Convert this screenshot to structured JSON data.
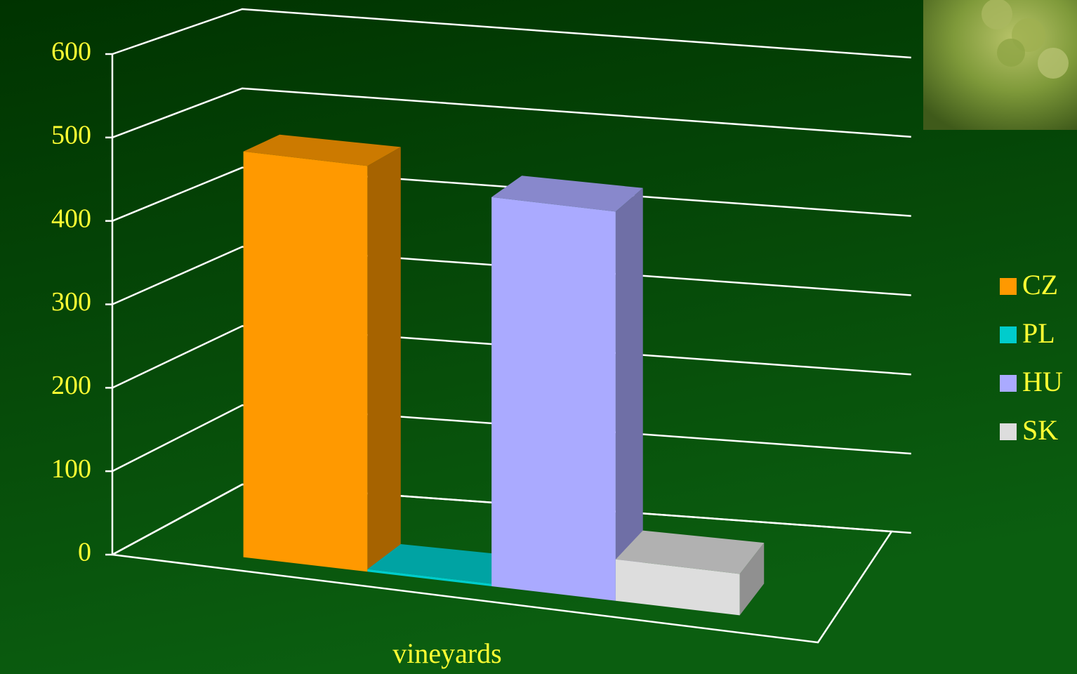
{
  "chart_data": {
    "type": "bar3d",
    "categories": [
      "vineyards"
    ],
    "series": [
      {
        "name": "CZ",
        "color": "#ff9900",
        "values": [
          490
        ]
      },
      {
        "name": "PL",
        "color": "#00cccc",
        "values": [
          3
        ]
      },
      {
        "name": "HU",
        "color": "#aaaaff",
        "values": [
          470
        ]
      },
      {
        "name": "SK",
        "color": "#dddddd",
        "values": [
          50
        ]
      }
    ],
    "ylim": [
      0,
      600
    ],
    "yticks": [
      0,
      100,
      200,
      300,
      400,
      500,
      600
    ],
    "grid": true,
    "legend": "right"
  }
}
